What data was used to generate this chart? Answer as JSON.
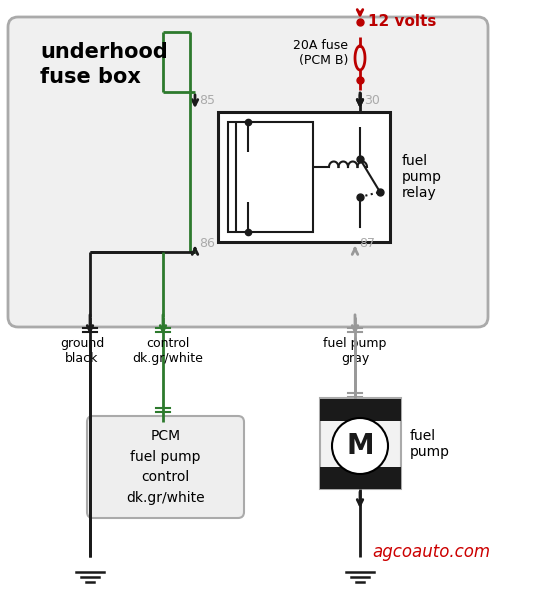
{
  "fuse_box_label": "underhood\nfuse box",
  "relay_label": "fuel\npump\nrelay",
  "fuse_label": "20A fuse\n(PCM B)",
  "volts_label": "12 volts",
  "pin85": "85",
  "pin86": "86",
  "pin30": "30",
  "pin87": "87",
  "ground_label": "ground\nblack",
  "control_label": "control\ndk.gr/white",
  "fuel_pump_wire_label": "fuel pump\ngray",
  "pcm_label": "PCM\nfuel pump\ncontrol\ndk.gr/white",
  "fuel_pump_label": "fuel\npump",
  "credit_label": "agcoauto.com",
  "red_color": "#bb0000",
  "green_color": "#2d7a2d",
  "black_color": "#1a1a1a",
  "gray_color": "#aaaaaa",
  "gray_wire": "#999999",
  "pin_label_color": "#aaaaaa",
  "credit_color": "#cc0000",
  "fb_bg": "#f0f0f0",
  "fb_edge": "#aaaaaa",
  "relay_bg": "#f0f0f0",
  "motor_bg": "#f2f2f2"
}
